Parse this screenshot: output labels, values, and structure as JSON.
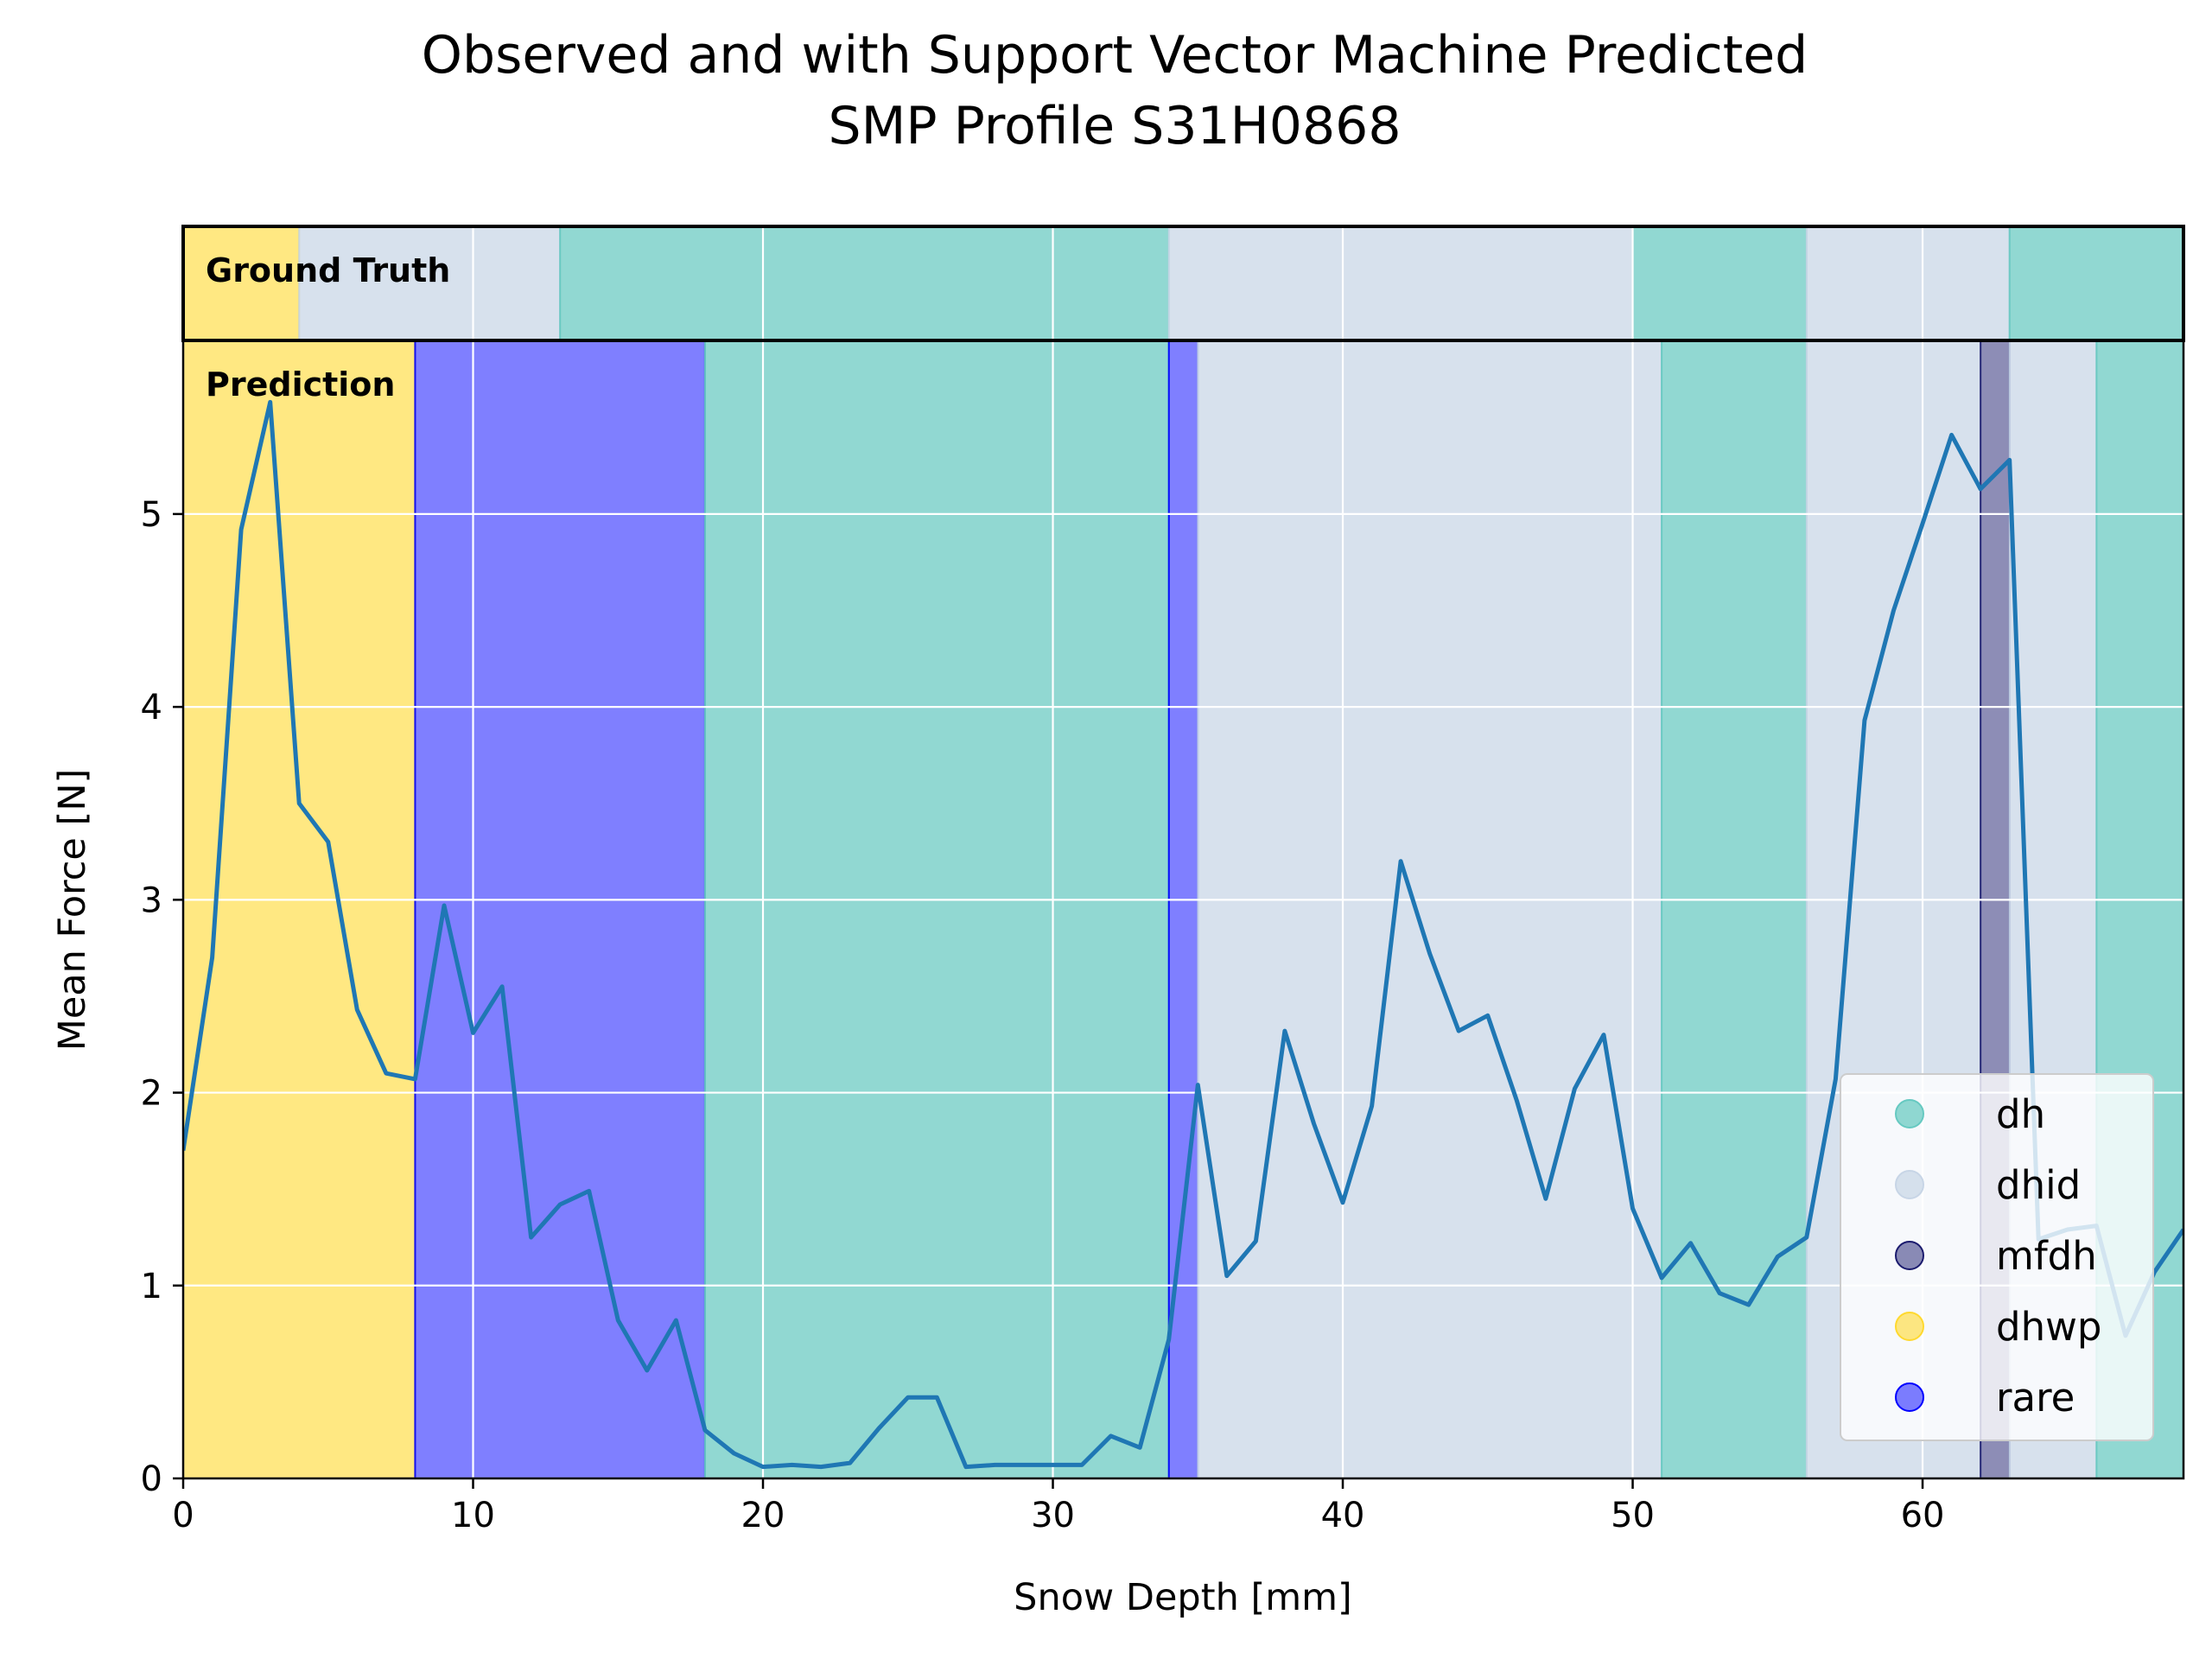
{
  "chart_data": {
    "type": "line",
    "title_line1": "Observed and with Support Vector Machine Predicted",
    "title_line2": "SMP Profile S31H0868",
    "xlabel": "Snow Depth [mm]",
    "ylabel": "Mean Force [N]",
    "xlim": [
      0,
      69
    ],
    "ylim": [
      0,
      5.9
    ],
    "xticks": [
      0,
      10,
      20,
      30,
      40,
      50,
      60
    ],
    "yticks": [
      0,
      1,
      2,
      3,
      4,
      5
    ],
    "grid": true,
    "legend_position": "lower-right",
    "ground_truth_label": "Ground Truth",
    "prediction_label": "Prediction",
    "classes": [
      {
        "name": "dh",
        "color": "#66c9c1"
      },
      {
        "name": "dhid",
        "color": "#c7d5e6"
      },
      {
        "name": "mfdh",
        "color": "#1b1b6e"
      },
      {
        "name": "dhwp",
        "color": "#ffd92f"
      },
      {
        "name": "rare",
        "color": "#0000ff"
      }
    ],
    "ground_truth": [
      {
        "start": 0,
        "end": 4,
        "class": "dhwp"
      },
      {
        "start": 4,
        "end": 13,
        "class": "dhid"
      },
      {
        "start": 13,
        "end": 34,
        "class": "dh"
      },
      {
        "start": 34,
        "end": 50,
        "class": "dhid"
      },
      {
        "start": 50,
        "end": 56,
        "class": "dh"
      },
      {
        "start": 56,
        "end": 63,
        "class": "dhid"
      },
      {
        "start": 63,
        "end": 69,
        "class": "dh"
      }
    ],
    "prediction": [
      {
        "start": 0,
        "end": 8,
        "class": "dhwp"
      },
      {
        "start": 8,
        "end": 18,
        "class": "rare"
      },
      {
        "start": 18,
        "end": 34,
        "class": "dh"
      },
      {
        "start": 34,
        "end": 35,
        "class": "rare"
      },
      {
        "start": 35,
        "end": 51,
        "class": "dhid"
      },
      {
        "start": 51,
        "end": 56,
        "class": "dh"
      },
      {
        "start": 56,
        "end": 62,
        "class": "dhid"
      },
      {
        "start": 62,
        "end": 63,
        "class": "mfdh"
      },
      {
        "start": 63,
        "end": 66,
        "class": "dhid"
      },
      {
        "start": 66,
        "end": 69,
        "class": "dh"
      }
    ],
    "series": [
      {
        "color": "#1f77b4",
        "x": [
          0,
          1,
          2,
          3,
          4,
          5,
          6,
          7,
          8,
          9,
          10,
          11,
          12,
          13,
          14,
          15,
          16,
          17,
          18,
          19,
          20,
          21,
          22,
          23,
          24,
          25,
          26,
          27,
          28,
          29,
          30,
          31,
          32,
          33,
          34,
          35,
          36,
          37,
          38,
          39,
          40,
          41,
          42,
          43,
          44,
          45,
          46,
          47,
          48,
          49,
          50,
          51,
          52,
          53,
          54,
          55,
          56,
          57,
          58,
          59,
          60,
          61,
          62,
          63,
          64,
          65,
          66,
          67,
          68,
          69
        ],
        "y": [
          1.7,
          2.7,
          4.92,
          5.58,
          3.5,
          3.3,
          2.43,
          2.1,
          2.07,
          2.97,
          2.31,
          2.55,
          1.25,
          1.42,
          1.49,
          0.82,
          0.56,
          0.82,
          0.25,
          0.13,
          0.06,
          0.07,
          0.06,
          0.08,
          0.26,
          0.42,
          0.42,
          0.06,
          0.07,
          0.07,
          0.07,
          0.07,
          0.22,
          0.16,
          0.72,
          2.04,
          1.05,
          1.23,
          2.32,
          1.84,
          1.43,
          1.93,
          3.2,
          2.72,
          2.32,
          2.4,
          1.96,
          1.45,
          2.02,
          2.3,
          1.4,
          1.04,
          1.22,
          0.96,
          0.9,
          1.15,
          1.25,
          2.07,
          3.93,
          4.5,
          4.95,
          5.41,
          5.13,
          5.28,
          1.24,
          1.29,
          1.31,
          0.74,
          1.07,
          1.29
        ]
      }
    ],
    "legend": [
      "dh",
      "dhid",
      "mfdh",
      "dhwp",
      "rare"
    ]
  }
}
